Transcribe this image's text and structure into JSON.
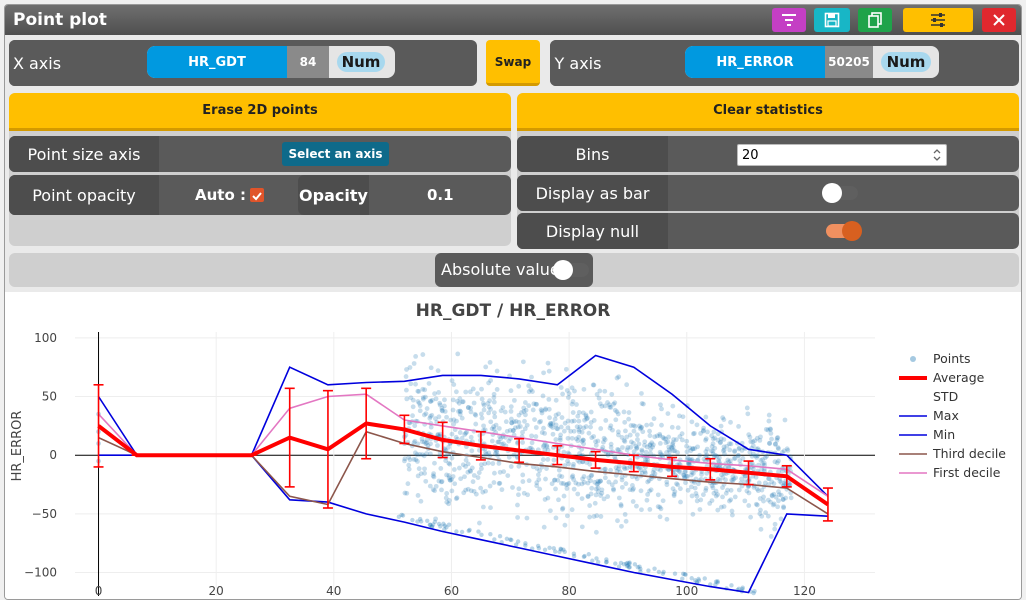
{
  "window": {
    "title": "Point plot"
  },
  "toolbar": {
    "buttons": [
      {
        "name": "filter-button",
        "icon": "filter-icon",
        "color": "#c43fc4"
      },
      {
        "name": "save-button",
        "icon": "save-icon",
        "color": "#18b6c6"
      },
      {
        "name": "copy-button",
        "icon": "copy-icon",
        "color": "#1fa34a"
      },
      {
        "name": "settings-button",
        "icon": "sliders-icon",
        "color": "#ffbf00"
      },
      {
        "name": "close-button",
        "icon": "close-icon",
        "color": "#e0282e"
      }
    ]
  },
  "x_axis": {
    "label": "X axis",
    "field": "HR_GDT",
    "count": "84",
    "type": "Num"
  },
  "swap": {
    "label": "Swap"
  },
  "y_axis": {
    "label": "Y axis",
    "field": "HR_ERROR",
    "count": "50205",
    "type": "Num"
  },
  "left_panel": {
    "erase_label": "Erase 2D points",
    "point_size_label": "Point size axis",
    "select_axis_label": "Select an axis",
    "point_opacity_label": "Point opacity",
    "auto_label": "Auto :",
    "auto_checked": true,
    "opacity_label": "Opacity",
    "opacity_value": "0.1"
  },
  "right_panel": {
    "clear_label": "Clear statistics",
    "bins_label": "Bins",
    "bins_value": "20",
    "display_bar_label": "Display as bar",
    "display_bar_on": false,
    "display_null_label": "Display null",
    "display_null_on": true
  },
  "absolute": {
    "label": "Absolute value",
    "on": false
  },
  "chart_data": {
    "type": "scatter",
    "title": "HR_GDT / HR_ERROR",
    "xlabel": "",
    "ylabel": "HR_ERROR",
    "xlim": [
      -4,
      132
    ],
    "ylim": [
      -120,
      105
    ],
    "xticks": [
      0,
      20,
      40,
      60,
      80,
      100,
      120
    ],
    "yticks": [
      100,
      50,
      0,
      -50,
      -100
    ],
    "legend_position": "right",
    "legend": [
      "Points",
      "Average",
      "STD",
      "Max",
      "Min",
      "Third decile",
      "First decile"
    ],
    "colors": {
      "points": "#1f77b4",
      "average": "#ff0000",
      "std": "#ff0000",
      "max": "#0000dd",
      "min": "#0000dd",
      "third": "#8c564b",
      "first": "#e377c2"
    },
    "bins_x": [
      0,
      6.5,
      13,
      19.5,
      26,
      32.5,
      39,
      45.5,
      52,
      58.5,
      65,
      71.5,
      78,
      84.5,
      91,
      97.5,
      104,
      110.5,
      117,
      124
    ],
    "average": [
      25,
      0,
      0,
      0,
      0,
      15,
      5,
      27,
      22,
      13,
      8,
      4,
      0,
      -4,
      -7,
      -10,
      -12,
      -15,
      -18,
      -42
    ],
    "std": [
      35,
      0,
      0,
      0,
      0,
      42,
      50,
      30,
      12,
      15,
      12,
      10,
      8,
      7,
      7,
      8,
      9,
      10,
      9,
      14
    ],
    "max": [
      50,
      0,
      0,
      0,
      0,
      75,
      60,
      62,
      63,
      68,
      68,
      65,
      60,
      85,
      75,
      52,
      25,
      5,
      0,
      -35
    ],
    "min": [
      0,
      0,
      0,
      0,
      0,
      -38,
      -40,
      -50,
      -57,
      -65,
      -72,
      -79,
      -86,
      -93,
      -100,
      -106,
      -112,
      -117,
      -50,
      -52
    ],
    "third_decile": [
      15,
      0,
      0,
      0,
      0,
      -35,
      -42,
      20,
      10,
      3,
      -2,
      -7,
      -10,
      -14,
      -17,
      -20,
      -23,
      -25,
      -28,
      -50
    ],
    "first_decile": [
      35,
      0,
      0,
      0,
      0,
      40,
      50,
      52,
      30,
      25,
      20,
      15,
      10,
      5,
      0,
      -4,
      -7,
      -9,
      -12,
      -35
    ]
  }
}
